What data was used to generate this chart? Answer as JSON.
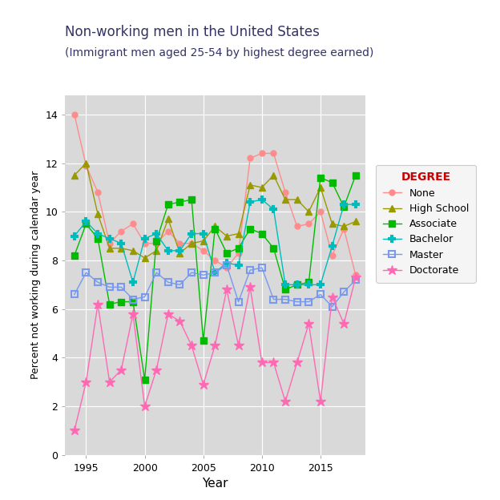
{
  "title": "Non-working men in the United States",
  "subtitle": "(Immigrant men aged 25-54 by highest degree earned)",
  "xlabel": "Year",
  "ylabel": "Percent not working during calendar year",
  "plot_bg": "#D9D9D9",
  "fig_bg": "#FFFFFF",
  "years": [
    1994,
    1995,
    1996,
    1997,
    1998,
    1999,
    2000,
    2001,
    2002,
    2003,
    2004,
    2005,
    2006,
    2007,
    2008,
    2009,
    2010,
    2011,
    2012,
    2013,
    2014,
    2015,
    2016,
    2017,
    2018
  ],
  "none_color": "#FF8C8C",
  "none_values": [
    14.0,
    11.9,
    10.8,
    8.7,
    9.2,
    9.5,
    8.7,
    8.7,
    9.2,
    8.7,
    8.7,
    8.4,
    8.0,
    7.7,
    8.3,
    12.2,
    12.4,
    12.4,
    10.8,
    9.4,
    9.5,
    10.0,
    8.2,
    9.3,
    7.4
  ],
  "hs_color": "#999900",
  "hs_values": [
    11.5,
    12.0,
    9.9,
    8.5,
    8.5,
    8.4,
    8.1,
    8.4,
    9.7,
    8.3,
    8.7,
    8.8,
    9.4,
    9.0,
    9.1,
    11.1,
    11.0,
    11.5,
    10.5,
    10.5,
    10.0,
    11.0,
    9.5,
    9.4,
    9.6
  ],
  "assoc_color": "#00BB00",
  "assoc_values": [
    8.2,
    9.5,
    8.9,
    6.2,
    6.3,
    6.3,
    3.1,
    8.8,
    10.3,
    10.4,
    10.5,
    4.7,
    9.3,
    8.3,
    8.5,
    9.3,
    9.1,
    8.5,
    6.8,
    7.0,
    7.1,
    11.4,
    11.2,
    10.2,
    11.5
  ],
  "bach_color": "#00BBBB",
  "bach_values": [
    9.0,
    9.6,
    9.1,
    8.9,
    8.7,
    7.1,
    8.9,
    9.1,
    8.4,
    8.4,
    9.1,
    9.1,
    7.5,
    7.9,
    7.8,
    10.4,
    10.5,
    10.1,
    7.0,
    7.0,
    7.0,
    7.0,
    8.6,
    10.3,
    10.3
  ],
  "master_color": "#7799EE",
  "master_values": [
    6.6,
    7.5,
    7.1,
    6.9,
    6.9,
    6.4,
    6.5,
    7.5,
    7.1,
    7.0,
    7.5,
    7.4,
    7.5,
    7.8,
    6.3,
    7.6,
    7.7,
    6.4,
    6.4,
    6.3,
    6.3,
    6.6,
    6.1,
    6.7,
    7.2
  ],
  "doc_color": "#FF69B4",
  "doc_values": [
    1.0,
    3.0,
    6.2,
    3.0,
    3.5,
    5.8,
    2.0,
    3.5,
    5.8,
    5.5,
    4.5,
    2.9,
    4.5,
    6.8,
    4.5,
    6.9,
    3.8,
    3.8,
    2.2,
    3.8,
    5.4,
    2.2,
    6.5,
    5.4,
    7.3
  ],
  "ylim": [
    0,
    14.8
  ],
  "yticks": [
    0,
    2,
    4,
    6,
    8,
    10,
    12,
    14
  ],
  "xticks": [
    1995,
    2000,
    2005,
    2010,
    2015
  ],
  "title_color": "#333366",
  "legend_title": "DEGREE",
  "legend_title_color": "#CC0000"
}
